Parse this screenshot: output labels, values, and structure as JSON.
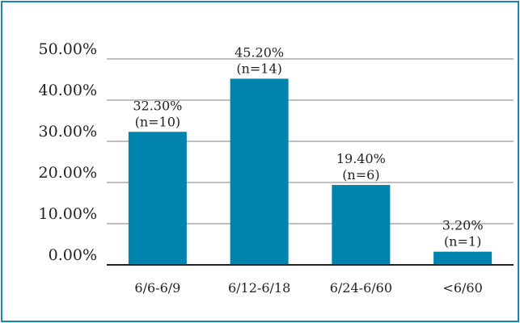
{
  "chart_data": {
    "type": "bar",
    "title": "",
    "xlabel": "",
    "ylabel": "",
    "categories": [
      "6/6-6/9",
      "6/12-6/18",
      "6/24-6/60",
      "<6/60"
    ],
    "values": [
      32.3,
      45.2,
      19.4,
      3.2
    ],
    "data_labels": [
      "32.30%",
      "45.20%",
      "19.40%",
      "3.20%"
    ],
    "counts": [
      "(n=10)",
      "(n=14)",
      "(n=6)",
      "(n=1)"
    ],
    "y_ticks": [
      "0.00%",
      "10.00%",
      "20.00%",
      "30.00%",
      "40.00%",
      "50.00%"
    ],
    "ylim": [
      0,
      50
    ],
    "grid": true,
    "legend": "none",
    "colors": {
      "bar": "#0083ad",
      "frame": "#1a87b0",
      "grid": "#aaaaaa",
      "axis": "#222222"
    }
  }
}
